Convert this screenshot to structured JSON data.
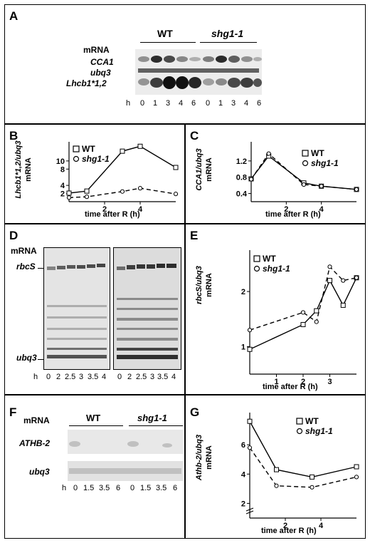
{
  "panels": {
    "A": {
      "label": "A",
      "mrna_label": "mRNA",
      "group_wt": "WT",
      "group_mut": "shg1-1",
      "rows": [
        "CCA1",
        "ubq3",
        "Lhcb1*1,2"
      ],
      "h_label": "h",
      "times": [
        "0",
        "1",
        "3",
        "4",
        "6",
        "0",
        "1",
        "3",
        "4",
        "6"
      ]
    },
    "B": {
      "label": "B",
      "legend_wt": "WT",
      "legend_mut": "shg1-1",
      "ylabel_gene": "Lhcb1*1,2/ubq3",
      "ylabel_mrna": "mRNA",
      "xlabel": "time after R (h)",
      "yticks": [
        "2",
        "4",
        "8",
        "10"
      ],
      "xticks": [
        "2",
        "4"
      ]
    },
    "C": {
      "label": "C",
      "legend_wt": "WT",
      "legend_mut": "shg1-1",
      "ylabel_gene": "CCA1/ubq3",
      "ylabel_mrna": "mRNA",
      "xlabel": "time after R (h)",
      "yticks": [
        "0.4",
        "0.8",
        "1.2"
      ],
      "xticks": [
        "2",
        "4"
      ]
    },
    "D": {
      "label": "D",
      "mrna_label": "mRNA",
      "rows": [
        "rbcS",
        "ubq3"
      ],
      "h_label": "h",
      "times": [
        "0",
        "2",
        "2.5",
        "3",
        "3.5",
        "4"
      ]
    },
    "E": {
      "label": "E",
      "legend_wt": "WT",
      "legend_mut": "shg1-1",
      "ylabel_gene": "rbcS/ubq3",
      "ylabel_mrna": "mRNA",
      "xlabel": "time after R (h)",
      "yticks": [
        "1",
        "2"
      ],
      "xticks": [
        "1",
        "2",
        "3"
      ]
    },
    "F": {
      "label": "F",
      "mrna_label": "mRNA",
      "group_wt": "WT",
      "group_mut": "shg1-1",
      "rows": [
        "ATHB-2",
        "ubq3"
      ],
      "h_label": "h",
      "times": [
        "0",
        "1.5",
        "3.5",
        "6",
        "0",
        "1.5",
        "3.5",
        "6"
      ]
    },
    "G": {
      "label": "G",
      "legend_wt": "WT",
      "legend_mut": "shg1-1",
      "ylabel_gene": "Athb-2/ubq3",
      "ylabel_mrna": "mRNA",
      "xlabel": "time after R (h)",
      "yticks": [
        "2",
        "4",
        "6"
      ],
      "xticks": [
        "2",
        "4"
      ]
    }
  },
  "chart_data": [
    {
      "type": "line",
      "panel": "B",
      "xlim": [
        0,
        6
      ],
      "ylim": [
        0,
        14
      ],
      "series": [
        {
          "name": "WT",
          "x": [
            0,
            1,
            3,
            4,
            6
          ],
          "y": [
            2.1,
            2.6,
            12.4,
            13.6,
            8.4
          ],
          "marker": "square",
          "dash": "solid"
        },
        {
          "name": "shg1-1",
          "x": [
            0,
            1,
            3,
            4,
            6
          ],
          "y": [
            1.0,
            1.2,
            2.5,
            3.3,
            1.9
          ],
          "marker": "circle",
          "dash": "dashed"
        }
      ]
    },
    {
      "type": "line",
      "panel": "C",
      "xlim": [
        0,
        6
      ],
      "ylim": [
        0.2,
        1.6
      ],
      "series": [
        {
          "name": "WT",
          "x": [
            0,
            1,
            3,
            4,
            6
          ],
          "y": [
            0.76,
            1.32,
            0.66,
            0.58,
            0.5
          ],
          "marker": "square",
          "dash": "solid"
        },
        {
          "name": "shg1-1",
          "x": [
            0,
            1,
            3,
            4,
            6
          ],
          "y": [
            0.75,
            1.38,
            0.62,
            0.58,
            0.5
          ],
          "marker": "circle",
          "dash": "dashed"
        }
      ]
    },
    {
      "type": "line",
      "panel": "E",
      "xlim": [
        0,
        4
      ],
      "ylim": [
        0.5,
        2.7
      ],
      "series": [
        {
          "name": "WT",
          "x": [
            0,
            2,
            2.5,
            3,
            3.5,
            4
          ],
          "y": [
            0.95,
            1.4,
            1.65,
            2.2,
            1.75,
            2.25
          ],
          "marker": "square",
          "dash": "solid"
        },
        {
          "name": "shg1-1",
          "x": [
            0,
            2,
            2.5,
            3,
            3.5,
            4
          ],
          "y": [
            1.3,
            1.62,
            1.45,
            2.45,
            2.2,
            2.25
          ],
          "marker": "circle",
          "dash": "dashed"
        }
      ]
    },
    {
      "type": "line",
      "panel": "G",
      "xlim": [
        0,
        6
      ],
      "ylim": [
        1,
        8
      ],
      "series": [
        {
          "name": "WT",
          "x": [
            0,
            1.5,
            3.5,
            6
          ],
          "y": [
            7.6,
            4.3,
            3.8,
            4.5
          ],
          "marker": "square",
          "dash": "solid"
        },
        {
          "name": "shg1-1",
          "x": [
            0,
            1.5,
            3.5,
            6
          ],
          "y": [
            5.8,
            3.2,
            3.1,
            3.8
          ],
          "marker": "circle",
          "dash": "dashed"
        }
      ]
    }
  ]
}
